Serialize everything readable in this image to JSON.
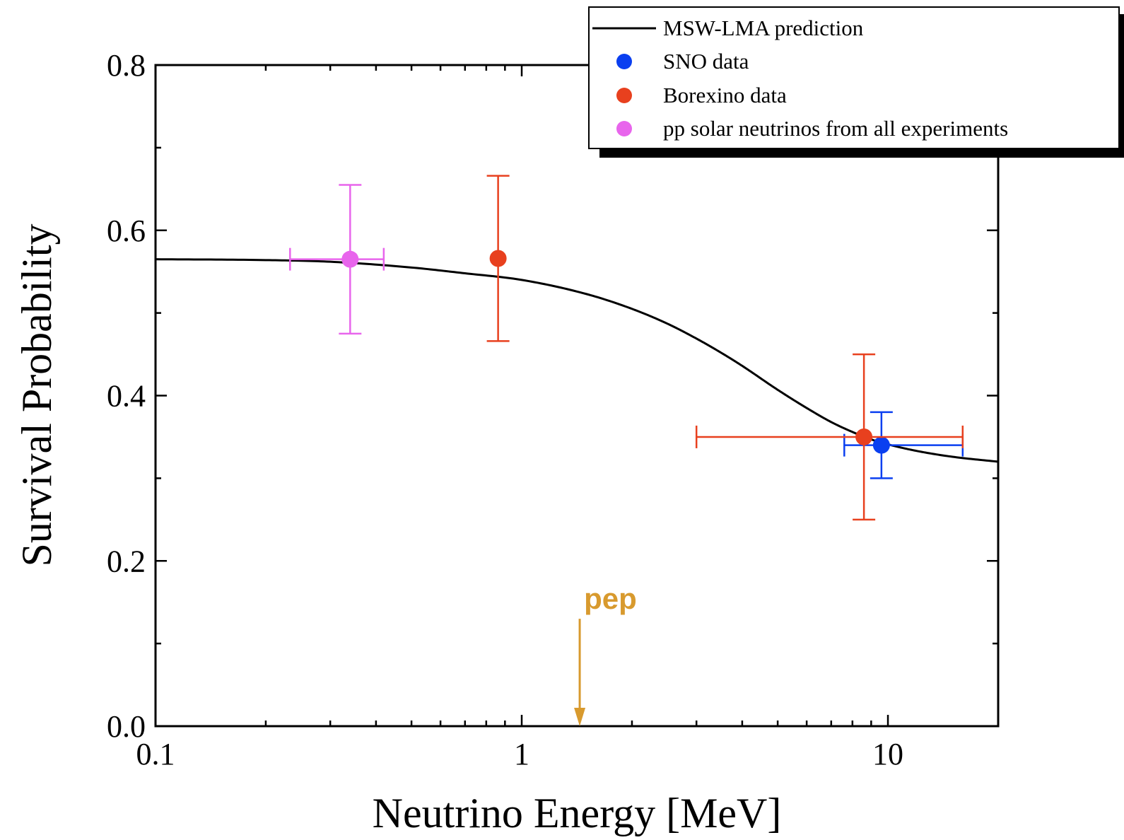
{
  "chart_data": {
    "type": "scatter",
    "xlabel": "Neutrino Energy [MeV]",
    "ylabel": "Survival Probability",
    "x_scale": "log",
    "xlim": [
      0.1,
      20
    ],
    "ylim": [
      0.0,
      0.8
    ],
    "x_ticks": [
      {
        "value": 0.1,
        "label": "0.1"
      },
      {
        "value": 1,
        "label": "1"
      },
      {
        "value": 10,
        "label": "10"
      }
    ],
    "y_ticks": [
      {
        "value": 0.0,
        "label": "0.0"
      },
      {
        "value": 0.2,
        "label": "0.2"
      },
      {
        "value": 0.4,
        "label": "0.4"
      },
      {
        "value": 0.6,
        "label": "0.6"
      },
      {
        "value": 0.8,
        "label": "0.8"
      }
    ],
    "grid": false,
    "legend_position": "top-right",
    "curve": {
      "name": "MSW-LMA prediction",
      "color": "#000000",
      "x": [
        0.1,
        0.2,
        0.3,
        0.5,
        0.7,
        1.0,
        1.5,
        2.0,
        2.5,
        3.0,
        3.5,
        4.0,
        5.0,
        6.0,
        7.0,
        8.0,
        9.0,
        10.0,
        12.0,
        15.0,
        20.0
      ],
      "y": [
        0.565,
        0.564,
        0.562,
        0.555,
        0.548,
        0.54,
        0.523,
        0.505,
        0.487,
        0.469,
        0.452,
        0.436,
        0.407,
        0.385,
        0.368,
        0.356,
        0.347,
        0.341,
        0.333,
        0.326,
        0.32
      ]
    },
    "series": [
      {
        "name": "SNO data",
        "color": "#0a3ff0",
        "points": [
          {
            "x": 9.6,
            "y": 0.34,
            "x_lo": 7.6,
            "x_hi": 16.0,
            "y_lo": 0.3,
            "y_hi": 0.38
          }
        ]
      },
      {
        "name": "Borexino data",
        "color": "#e8401e",
        "points": [
          {
            "x": 0.862,
            "y": 0.566,
            "x_lo": 0.862,
            "x_hi": 0.862,
            "y_lo": 0.466,
            "y_hi": 0.666
          },
          {
            "x": 8.6,
            "y": 0.35,
            "x_lo": 3.0,
            "x_hi": 16.0,
            "y_lo": 0.25,
            "y_hi": 0.45
          }
        ]
      },
      {
        "name": "pp solar neutrinos from all experiments",
        "color": "#e865ec",
        "points": [
          {
            "x": 0.34,
            "y": 0.565,
            "x_lo": 0.233,
            "x_hi": 0.42,
            "y_lo": 0.475,
            "y_hi": 0.655
          }
        ]
      }
    ],
    "annotations": [
      {
        "text": "pep",
        "x": 1.44,
        "y_from": 0.13,
        "y_to": 0.0,
        "color": "#d89a2e"
      }
    ]
  }
}
